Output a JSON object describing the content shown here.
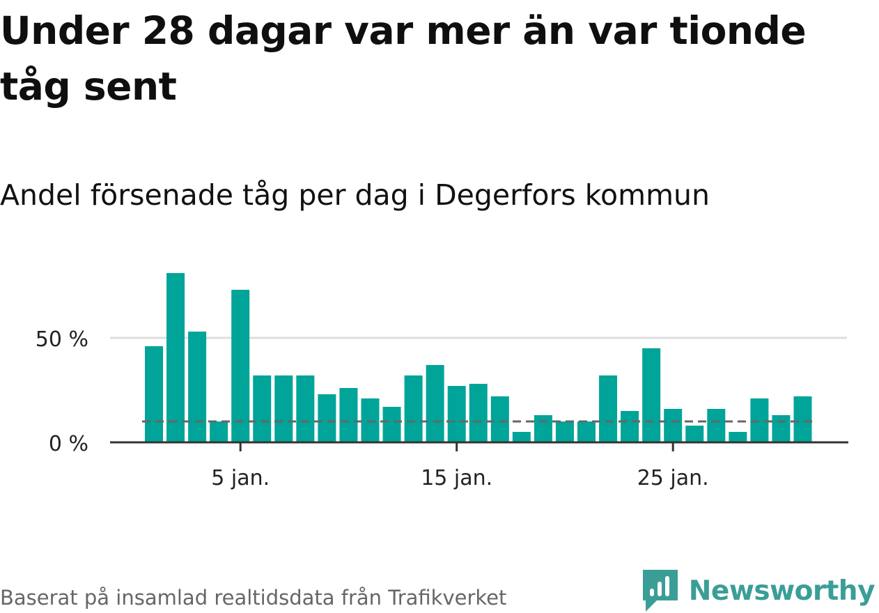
{
  "header": {
    "title": "Under 28 dagar var mer än var tionde tåg sent",
    "subtitle": "Andel försenade tåg per dag i Degerfors kommun"
  },
  "footer": {
    "source": "Baserat på insamlad realtidsdata från Trafikverket",
    "brand": "Newsworthy",
    "brand_icon": "bar-chart-speech-bubble-icon"
  },
  "colors": {
    "bar": "#00a499",
    "grid": "#dddddd",
    "axis": "#333333",
    "reference_line": "#666666",
    "brand": "#3a9e97"
  },
  "chart_data": {
    "type": "bar",
    "x_unit": "day of January",
    "x": [
      1,
      2,
      3,
      4,
      5,
      6,
      7,
      8,
      9,
      10,
      11,
      12,
      13,
      14,
      15,
      16,
      17,
      18,
      19,
      20,
      21,
      22,
      23,
      24,
      25,
      26,
      27,
      28,
      29,
      30,
      31
    ],
    "values": [
      46,
      81,
      53,
      10,
      73,
      32,
      32,
      32,
      23,
      26,
      21,
      17,
      32,
      37,
      27,
      28,
      22,
      5,
      13,
      10,
      10,
      32,
      15,
      45,
      16,
      8,
      16,
      5,
      21,
      13,
      22
    ],
    "reference_value": 10,
    "x_ticks": [
      {
        "x": 5,
        "label": "5 jan."
      },
      {
        "x": 15,
        "label": "15 jan."
      },
      {
        "x": 25,
        "label": "25 jan."
      }
    ],
    "y_ticks": [
      {
        "y": 0,
        "label": "0 %"
      },
      {
        "y": 50,
        "label": "50 %"
      }
    ],
    "ylim": [
      0,
      85
    ],
    "xlabel": "",
    "ylabel": "",
    "grid": true,
    "legend": "none"
  }
}
